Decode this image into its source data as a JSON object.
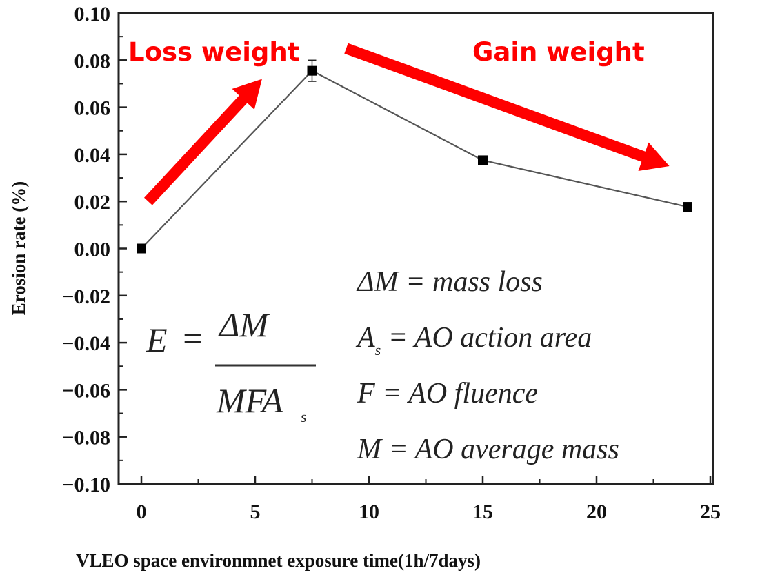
{
  "chart_data": {
    "type": "line",
    "title": "",
    "xlabel": "VLEO space environmnet exposure time(1h/7days)",
    "ylabel": "Erosion rate (%)",
    "xlim": [
      -1,
      25
    ],
    "ylim": [
      -0.1,
      0.1
    ],
    "x_ticks": [
      0,
      5,
      10,
      15,
      20,
      25
    ],
    "x_tick_labels": [
      "0",
      "5",
      "10",
      "15",
      "20",
      "25"
    ],
    "y_ticks": [
      0.1,
      0.08,
      0.06,
      0.04,
      0.02,
      0.0,
      -0.02,
      -0.04,
      -0.06,
      -0.08,
      -0.1
    ],
    "y_tick_labels": [
      "0.10",
      "0.08",
      "0.06",
      "0.04",
      "0.02",
      "0.00",
      "−0.02",
      "−0.04",
      "−0.06",
      "−0.08",
      "−0.10"
    ],
    "grid": false,
    "series": [
      {
        "name": "Erosion rate",
        "marker": "square",
        "color": "#000000",
        "line_color": "#555555",
        "x": [
          0,
          7.5,
          15,
          24
        ],
        "y": [
          0.0,
          0.0755,
          0.0375,
          0.0177
        ],
        "error": [
          0.0,
          0.0045,
          0.0,
          0.0015
        ]
      }
    ],
    "annotations": {
      "loss_label": "Loss weight",
      "gain_label": "Gain weight",
      "annotation_color": "#ff0000",
      "loss_arrow": {
        "from": [
          0.3,
          0.02
        ],
        "to": [
          5.3,
          0.072
        ]
      },
      "gain_arrow": {
        "from": [
          9,
          0.085
        ],
        "to": [
          23.2,
          0.035
        ]
      },
      "formula": {
        "lhs": "E",
        "eq": "=",
        "numerator": "ΔM",
        "denominator": "MFA",
        "denominator_sub": "s"
      },
      "definitions": [
        {
          "symbol": "ΔM",
          "sub": "",
          "text": " = mass loss"
        },
        {
          "symbol": "A",
          "sub": "s",
          "text": " = AO action area"
        },
        {
          "symbol": "F",
          "sub": "",
          "text": " = AO fluence"
        },
        {
          "symbol": "M",
          "sub": "",
          "text": " = AO average mass"
        }
      ]
    }
  }
}
